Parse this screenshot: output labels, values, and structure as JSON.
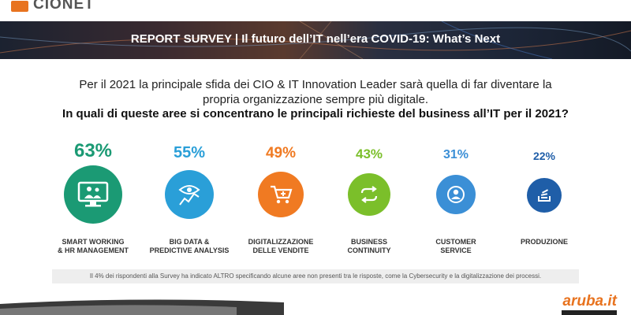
{
  "brand": {
    "logo_text": "CIONET",
    "partner_logo": "aruba.it"
  },
  "banner": {
    "title": "REPORT SURVEY  | Il futuro dell’IT nell’era COVID-19: What’s Next"
  },
  "intro": {
    "line1": "Per il 2021 la principale sfida dei CIO & IT Innovation Leader sarà quella di far diventare la",
    "line2": "propria organizzazione sempre più digitale.",
    "question": "In quali di queste aree si concentrano le principali richieste del business all’IT per il 2021?"
  },
  "items": [
    {
      "pct": "63%",
      "label1": "SMART WORKING",
      "label2": "& HR MANAGEMENT",
      "color": "#1b9a74",
      "icon": "monitor-people-icon"
    },
    {
      "pct": "55%",
      "label1": "BIG DATA &",
      "label2": "PREDICTIVE ANALYSIS",
      "color": "#2a9fd8",
      "icon": "eye-chart-icon"
    },
    {
      "pct": "49%",
      "label1": "DIGITALIZZAZIONE",
      "label2": "DELLE VENDITE",
      "color": "#f07a22",
      "icon": "cart-plus-icon"
    },
    {
      "pct": "43%",
      "label1": "BUSINESS",
      "label2": "CONTINUITY",
      "color": "#7bbf2a",
      "icon": "cycle-arrows-icon"
    },
    {
      "pct": "31%",
      "label1": "CUSTOMER",
      "label2": "SERVICE",
      "color": "#3b8fd6",
      "icon": "customer-icon"
    },
    {
      "pct": "22%",
      "label1": "PRODUZIONE",
      "label2": "",
      "color": "#1f5ea8",
      "icon": "stack-icon"
    }
  ],
  "footnote": "Il 4% dei rispondenti alla Survey ha indicato ALTRO specificando alcune aree non presenti tra le risposte, come la Cybersecurity e la digitalizzazione dei processi."
}
